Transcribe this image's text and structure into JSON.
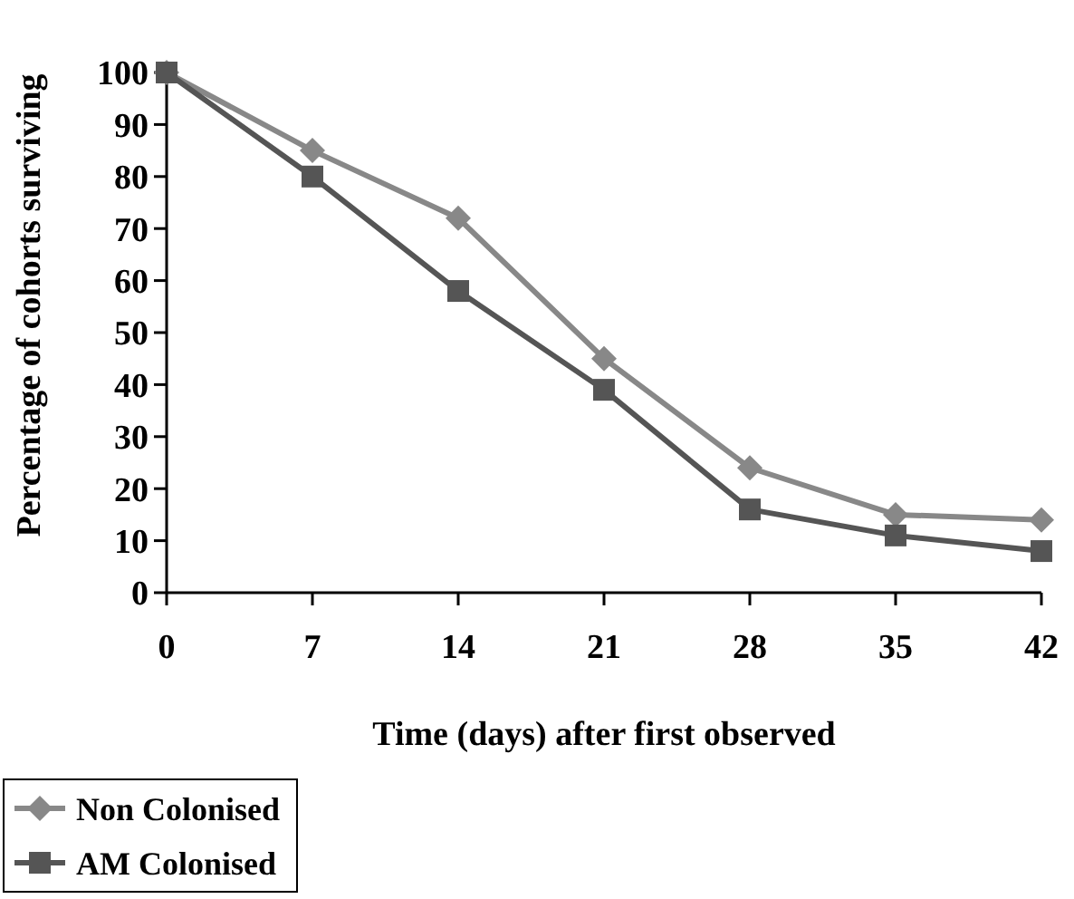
{
  "chart_data": {
    "type": "line",
    "xlabel": "Time (days) after first observed",
    "ylabel": "Percentage of cohorts surviving",
    "x": [
      0,
      7,
      14,
      21,
      28,
      35,
      42
    ],
    "xlim": [
      0,
      42
    ],
    "xticks": [
      0,
      7,
      14,
      21,
      28,
      35,
      42
    ],
    "ylim": [
      0,
      100
    ],
    "yticks": [
      0,
      10,
      20,
      30,
      40,
      50,
      60,
      70,
      80,
      90,
      100
    ],
    "series": [
      {
        "name": "Non Colonised",
        "color": "#888888",
        "marker": "diamond",
        "values": [
          100,
          85,
          72,
          45,
          24,
          15,
          14
        ]
      },
      {
        "name": "AM Colonised",
        "color": "#555555",
        "marker": "square",
        "values": [
          100,
          80,
          58,
          39,
          16,
          11,
          8
        ]
      }
    ],
    "legend": "bottom left",
    "grid": false,
    "line_style": "solid"
  }
}
